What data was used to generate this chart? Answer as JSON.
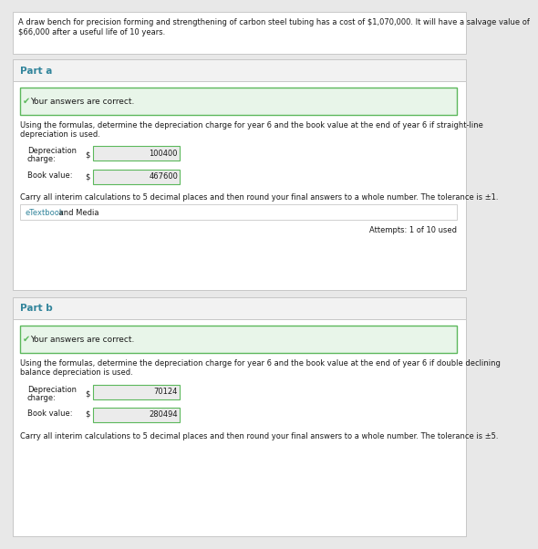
{
  "bg_color": "#e8e8e8",
  "white": "#ffffff",
  "panel_bg": "#f2f2f2",
  "section_bg": "#e8f5e9",
  "section_border": "#5cb85c",
  "input_box_bg": "#ebebeb",
  "input_box_border": "#5cb85c",
  "teal_text": "#31849b",
  "green_check": "#5cb85c",
  "dark_text": "#1a1a1a",
  "light_gray_border": "#c8c8c8",
  "etextbook_border": "#d0d0d0",
  "header_text_line1": "A draw bench for precision forming and strengthening of carbon steel tubing has a cost of $1,070,000. It will have a salvage value of",
  "header_text_line2": "$66,000 after a useful life of 10 years.",
  "part_a_label": "Part a",
  "part_b_label": "Part b",
  "correct_msg": "Your answers are correct.",
  "part_a_question_line1": "Using the formulas, determine the depreciation charge for year 6 and the book value at the end of year 6 if straight-line",
  "part_a_question_line2": "depreciation is used.",
  "part_b_question_line1": "Using the formulas, determine the depreciation charge for year 6 and the book value at the end of year 6 if double declining",
  "part_b_question_line2": "balance depreciation is used.",
  "dep_label_line1": "Depreciation",
  "dep_label_line2": "charge:",
  "bv_label": "Book value:",
  "dollar": "$",
  "part_a_dep": "100400",
  "part_a_bv": "467600",
  "part_b_dep": "70124",
  "part_b_bv": "280494",
  "carry_note_a": "Carry all interim calculations to 5 decimal places and then round your final answers to a whole number. The tolerance is ±1.",
  "carry_note_b": "Carry all interim calculations to 5 decimal places and then round your final answers to a whole number. The tolerance is ±5.",
  "etextbook_text1": "eTextbook",
  "etextbook_text2": " and Media",
  "attempts": "Attempts: 1 of 10 used",
  "fs_small": 6.0,
  "fs_med": 6.5,
  "fs_label": 7.5
}
